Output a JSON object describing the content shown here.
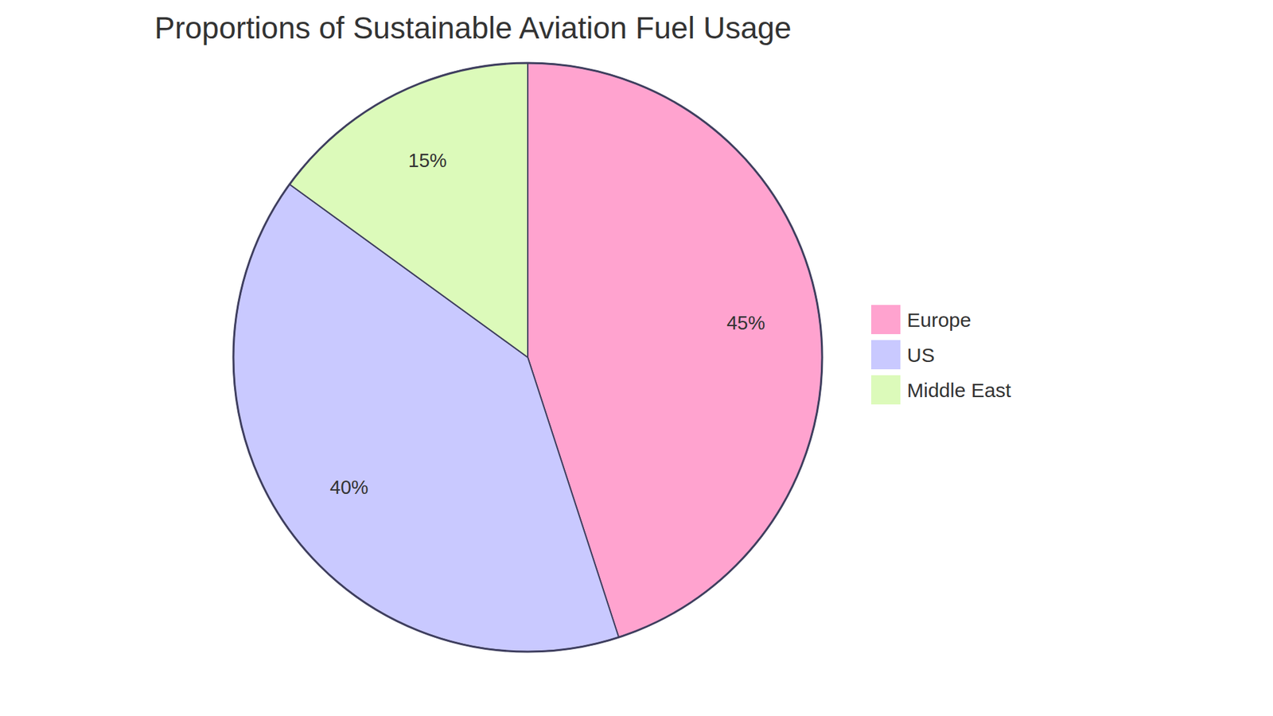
{
  "chart_data": {
    "type": "pie",
    "title": "Proportions of Sustainable Aviation Fuel Usage",
    "categories": [
      "Europe",
      "US",
      "Middle East"
    ],
    "values": [
      45,
      40,
      15
    ],
    "value_labels": [
      "45%",
      "40%",
      "15%"
    ],
    "colors": [
      "#ffa3cf",
      "#c9c9ff",
      "#dcfaba"
    ],
    "data_labels": true,
    "legend": "right"
  }
}
